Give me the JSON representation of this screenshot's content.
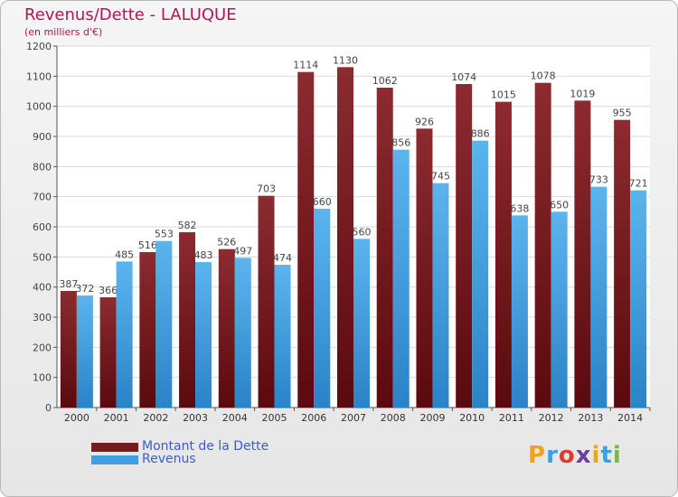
{
  "header": {
    "title": "Revenus/Dette - LALUQUE",
    "subtitle": "(en milliers d'€)"
  },
  "chart_data": {
    "type": "bar",
    "categories": [
      "2000",
      "2001",
      "2002",
      "2003",
      "2004",
      "2005",
      "2006",
      "2007",
      "2008",
      "2009",
      "2010",
      "2011",
      "2012",
      "2013",
      "2014"
    ],
    "series": [
      {
        "name": "Montant de la Dette",
        "values": [
          387,
          366,
          516,
          582,
          526,
          703,
          1114,
          1130,
          1062,
          926,
          1074,
          1015,
          1078,
          1019,
          955
        ],
        "color": "#7a1a1f"
      },
      {
        "name": "Revenus",
        "values": [
          372,
          485,
          553,
          483,
          497,
          474,
          660,
          560,
          856,
          745,
          886,
          638,
          650,
          733,
          721
        ],
        "color": "#3f9fe0"
      }
    ],
    "ylim": [
      0,
      1200
    ],
    "yticks": [
      0,
      100,
      200,
      300,
      400,
      500,
      600,
      700,
      800,
      900,
      1000,
      1100,
      1200
    ],
    "grid": true,
    "legend": "bottom-left"
  },
  "legend": {
    "items": [
      {
        "label": "Montant de la Dette",
        "color": "#7a1a1f"
      },
      {
        "label": "Revenus",
        "color": "#3f9fe0"
      }
    ]
  },
  "logo": {
    "letters": [
      "P",
      "r",
      "o",
      "x",
      "i",
      "t",
      "i"
    ],
    "colors": [
      "#f0a418",
      "#3aa0e0",
      "#e03c2c",
      "#6b3fa0",
      "#f0a418",
      "#3aa0e0",
      "#7ab648"
    ]
  }
}
